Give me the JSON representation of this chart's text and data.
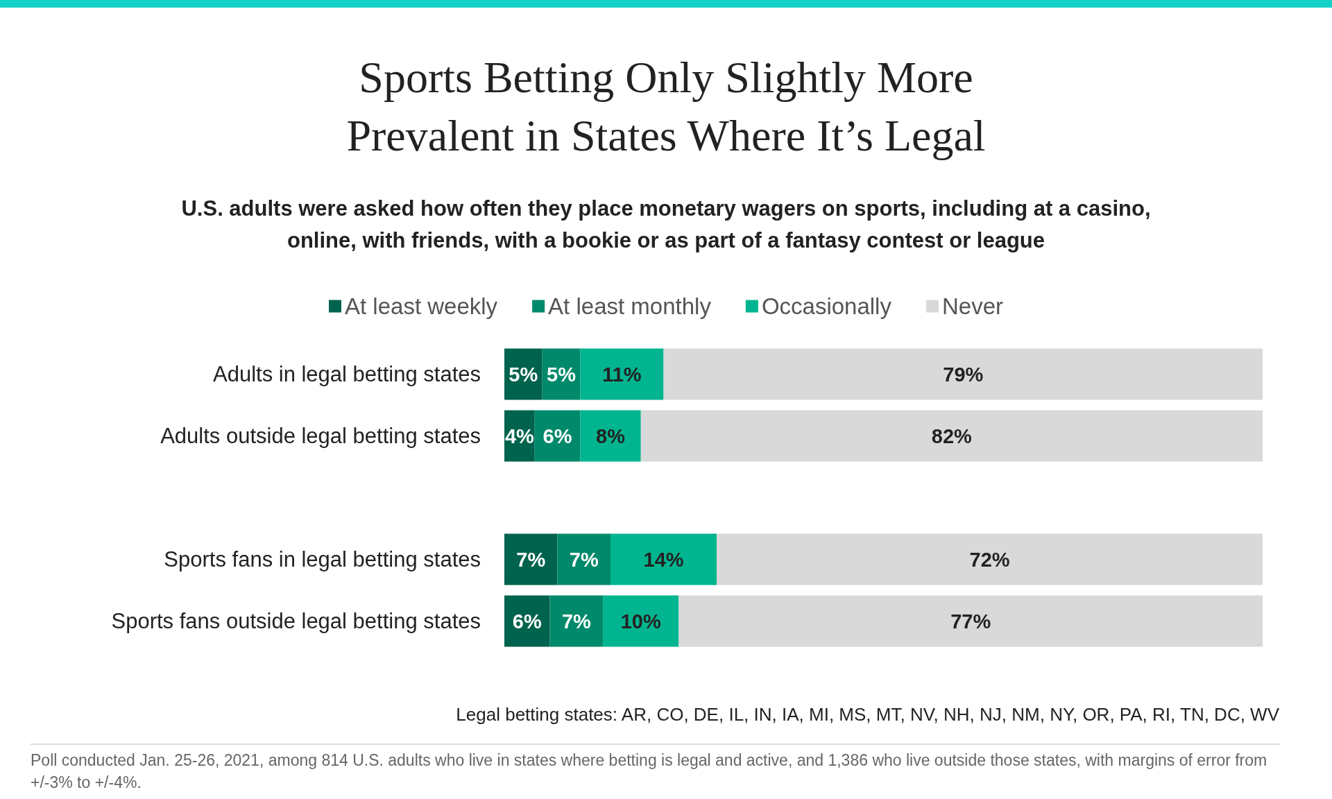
{
  "chart_data": {
    "type": "bar",
    "orientation": "horizontal",
    "stacked": true,
    "title": "Sports Betting Only Slightly More Prevalent in States Where It’s Legal",
    "subtitle": "U.S. adults were asked how often they place monetary wagers on sports, including at a casino, online, with friends, with a bookie or as part of a fantasy contest or league",
    "categories": [
      "Adults in legal betting states",
      "Adults outside legal betting states",
      null,
      "Sports fans in legal betting states",
      "Sports fans outside legal betting states"
    ],
    "series": [
      {
        "name": "At least weekly",
        "color": "#00634d",
        "values": [
          5,
          4,
          null,
          7,
          6
        ],
        "value_labels": [
          "5%",
          "4%",
          null,
          "7%",
          "6%"
        ]
      },
      {
        "name": "At least monthly",
        "color": "#00896a",
        "values": [
          5,
          6,
          null,
          7,
          7
        ],
        "value_labels": [
          "5%",
          "6%",
          null,
          "7%",
          "7%"
        ]
      },
      {
        "name": "Occasionally",
        "color": "#00b58f",
        "values": [
          11,
          8,
          null,
          14,
          10
        ],
        "value_labels": [
          "11%",
          "8%",
          null,
          "14%",
          "10%"
        ]
      },
      {
        "name": "Never",
        "color": "#d9d9d9",
        "values": [
          79,
          82,
          null,
          72,
          77
        ],
        "value_labels": [
          "79%",
          "82%",
          null,
          "72%",
          "77%"
        ]
      }
    ],
    "tick_labels": "y",
    "legend": "top",
    "annotations": [
      "Legal betting states: AR, CO, DE, IL, IN, IA, MI, MS, MT, NV, NH, NJ, NM, NY, OR, PA, RI, TN, DC, WV",
      "Poll conducted Jan. 25-26, 2021, among 814 U.S. adults who live in states where betting is legal and active, and 1,386 who live outside those states, with margins of error from +/-3% to +/-4%."
    ]
  }
}
